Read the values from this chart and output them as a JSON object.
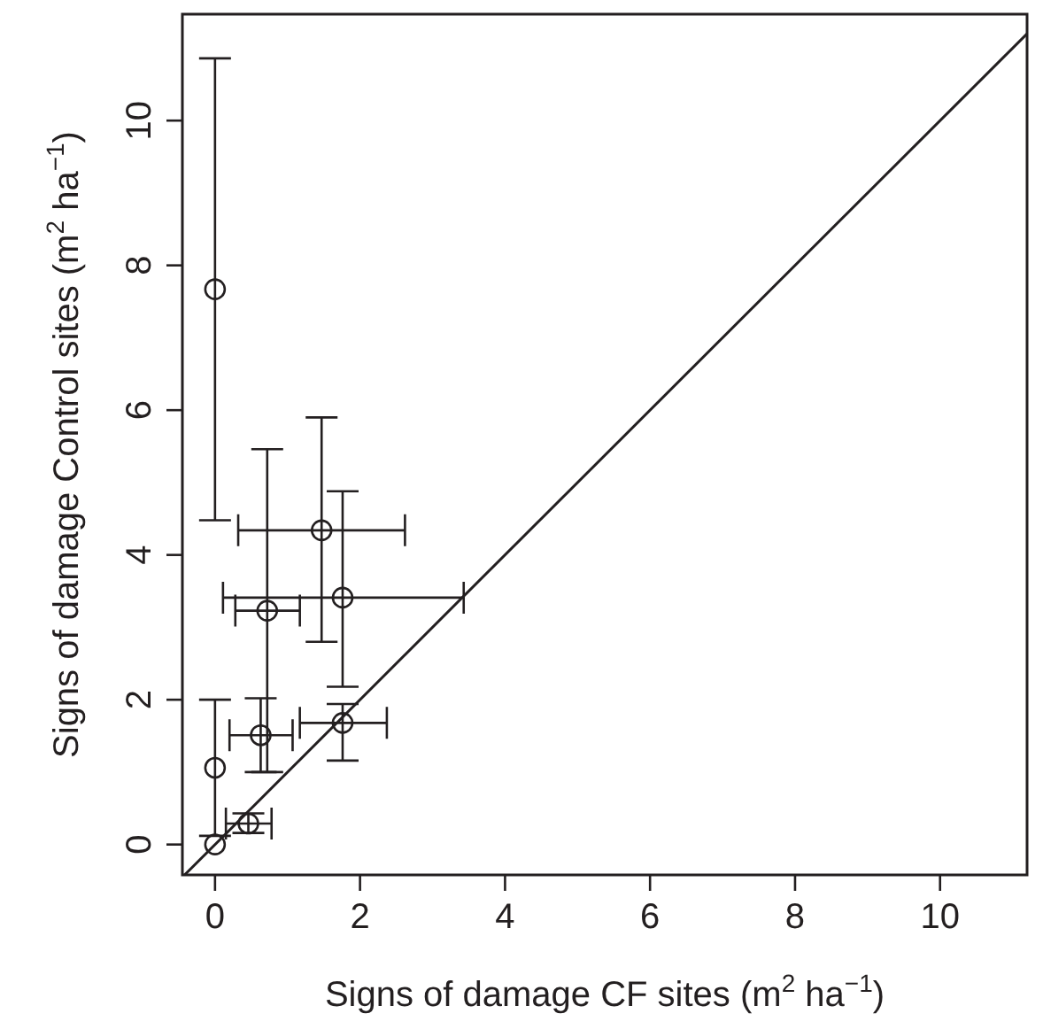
{
  "chart_data": {
    "type": "scatter",
    "xlabel": "Signs of damage CF sites (m$^{2}$ ha$^{−1}$)",
    "ylabel": "Signs of damage Control sites (m$^{2}$ ha$^{−1}$)",
    "xlim": [
      -0.45,
      11.2
    ],
    "ylim": [
      -0.42,
      11.47
    ],
    "xticks": [
      0,
      2,
      4,
      6,
      8,
      10
    ],
    "yticks": [
      0,
      2,
      4,
      6,
      8,
      10
    ],
    "grid": false,
    "marker": "circle",
    "series": [
      {
        "color": "#231f20",
        "x": [
          0,
          0,
          0.46,
          0.63,
          0.72,
          1.47,
          1.76,
          1.76,
          0
        ],
        "values": [
          0,
          1.06,
          0.29,
          1.51,
          3.23,
          4.34,
          3.41,
          1.68,
          7.67
        ],
        "errors": [
          null,
          [
            0.12,
            2.0
          ],
          [
            0.16,
            0.43
          ],
          [
            1.0,
            2.02
          ],
          [
            1.0,
            5.46
          ],
          [
            2.8,
            5.9
          ],
          [
            2.18,
            4.88
          ],
          [
            1.16,
            1.94
          ],
          [
            4.48,
            10.86
          ]
        ],
        "xerrors": [
          null,
          null,
          [
            0.15,
            0.78
          ],
          [
            0.2,
            1.07
          ],
          [
            0.28,
            1.17
          ],
          [
            0.32,
            2.62
          ],
          [
            0.11,
            3.43
          ],
          [
            1.17,
            2.37
          ],
          null
        ]
      },
      {
        "type": "line",
        "color": "#231f20",
        "marker": "none",
        "x": [
          -0.42,
          11.2
        ],
        "values": [
          -0.42,
          11.2
        ]
      }
    ]
  }
}
